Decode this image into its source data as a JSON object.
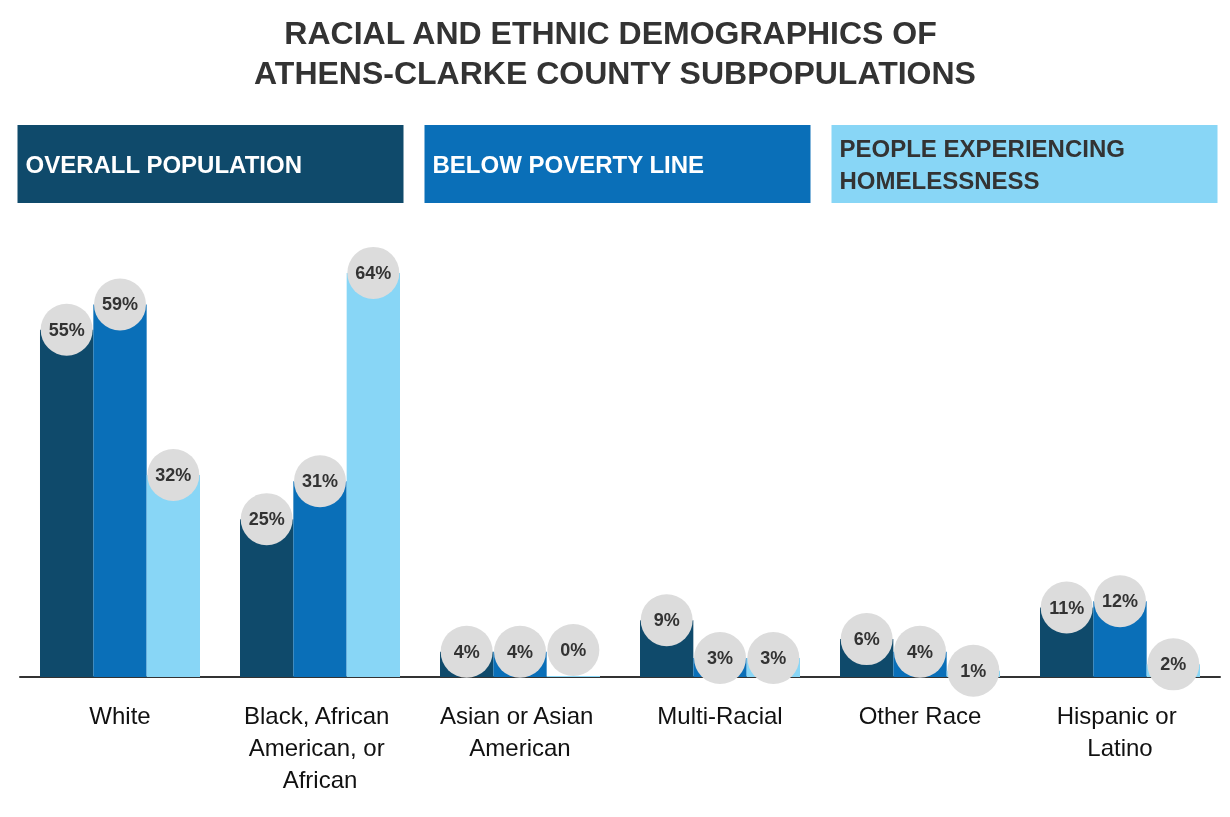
{
  "chart_data": {
    "type": "bar",
    "title": "RACIAL AND ETHNIC DEMOGRAPHICS OF ATHENS-CLARKE COUNTY SUBPOPULATIONS",
    "categories": [
      "White",
      "Black, African American, or African",
      "Asian or Asian American",
      "Multi-Racial",
      "Other Race",
      "Hispanic or Latino"
    ],
    "series": [
      {
        "name": "OVERALL POPULATION",
        "color": "#0f4a6b",
        "values": [
          55,
          25,
          4,
          9,
          6,
          11
        ],
        "value_labels": [
          "55%",
          "25%",
          "4%",
          "9%",
          "6%",
          "11%"
        ]
      },
      {
        "name": "BELOW POVERTY LINE",
        "color": "#0a6fb8",
        "values": [
          59,
          31,
          4,
          3,
          4,
          12
        ],
        "value_labels": [
          "59%",
          "31%",
          "4%",
          "3%",
          "4%",
          "12%"
        ]
      },
      {
        "name": "PEOPLE EXPERIENCING HOMELESSNESS",
        "color": "#88d6f6",
        "values": [
          32,
          64,
          0,
          3,
          1,
          2
        ],
        "value_labels": [
          "32%",
          "64%",
          "0%",
          "3%",
          "1%",
          "2%"
        ]
      }
    ],
    "legend": "top",
    "grid": false
  }
}
